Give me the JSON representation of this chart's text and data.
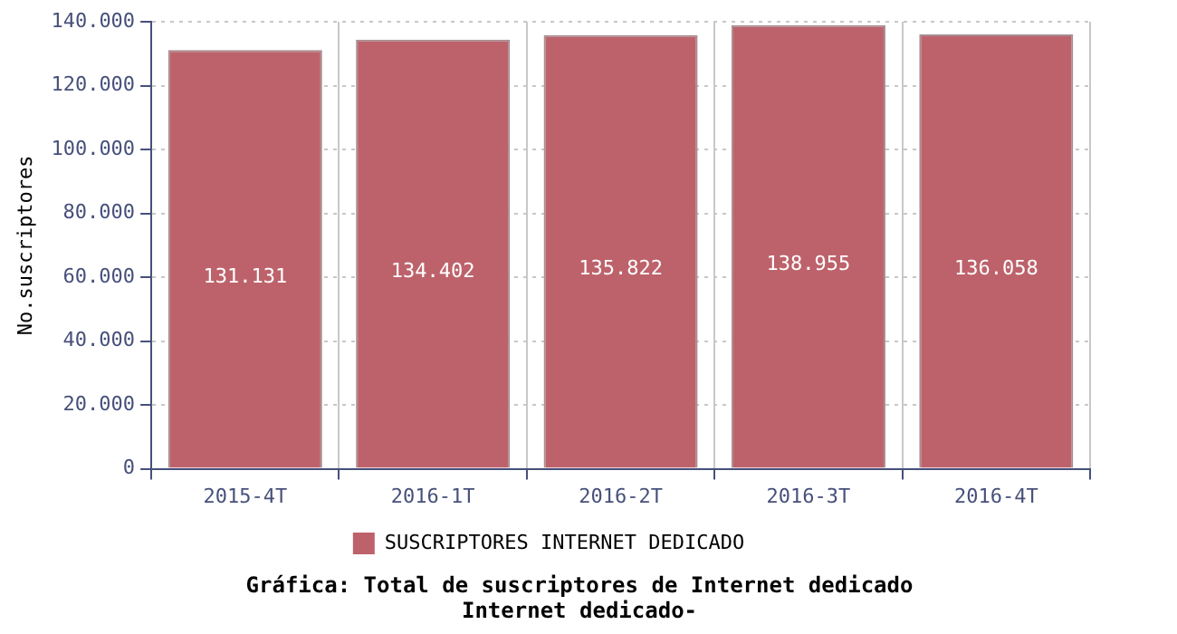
{
  "chart_data": {
    "type": "bar",
    "title": "Gráfica: Total de suscriptores de Internet dedicado",
    "subtitle": "Internet dedicado-",
    "ylabel": "No.suscriptores",
    "categories": [
      "2015-4T",
      "2016-1T",
      "2016-2T",
      "2016-3T",
      "2016-4T"
    ],
    "series": [
      {
        "name": "SUSCRIPTORES INTERNET DEDICADO",
        "color": "#bd626b",
        "values": [
          131131,
          134402,
          135822,
          138955,
          136058
        ],
        "value_labels": [
          "131.131",
          "134.402",
          "135.822",
          "138.955",
          "136.058"
        ]
      }
    ],
    "ylim": [
      0,
      140000
    ],
    "yticks": [
      {
        "value": 0,
        "label": "0"
      },
      {
        "value": 20000,
        "label": "20.000"
      },
      {
        "value": 40000,
        "label": "40.000"
      },
      {
        "value": 60000,
        "label": "60.000"
      },
      {
        "value": 80000,
        "label": "80.000"
      },
      {
        "value": 100000,
        "label": "100.000"
      },
      {
        "value": 120000,
        "label": "120.000"
      },
      {
        "value": 140000,
        "label": "140.000"
      }
    ],
    "grid": true,
    "legend": "bottom"
  }
}
